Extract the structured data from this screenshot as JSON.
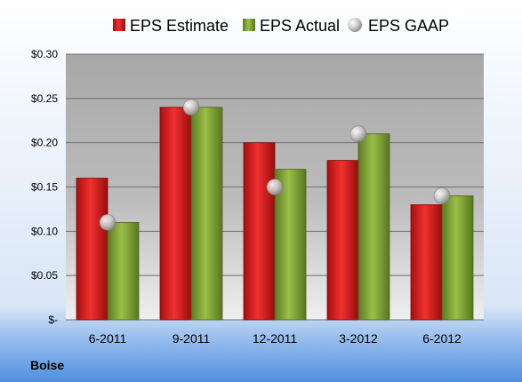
{
  "chart_data": {
    "type": "bar",
    "categories": [
      "6-2011",
      "9-2011",
      "12-2011",
      "3-2012",
      "6-2012"
    ],
    "series": [
      {
        "name": "EPS Estimate",
        "kind": "bar",
        "color": "#e02020",
        "values": [
          0.16,
          0.24,
          0.2,
          0.18,
          0.13
        ]
      },
      {
        "name": "EPS Actual",
        "kind": "bar",
        "color": "#8aaa3a",
        "values": [
          0.11,
          0.24,
          0.17,
          0.21,
          0.14
        ]
      },
      {
        "name": "EPS GAAP",
        "kind": "scatter",
        "color": "#c8c8c8",
        "values": [
          0.11,
          0.24,
          0.15,
          0.21,
          0.14
        ]
      }
    ],
    "ylim": [
      0,
      0.3
    ],
    "yticks": [
      0,
      0.05,
      0.1,
      0.15,
      0.2,
      0.25,
      0.3
    ],
    "ytick_labels": [
      "$-",
      "$0.05",
      "$0.10",
      "$0.15",
      "$0.20",
      "$0.25",
      "$0.30"
    ],
    "grid": true,
    "legend_position": "top",
    "company": "Boise"
  }
}
